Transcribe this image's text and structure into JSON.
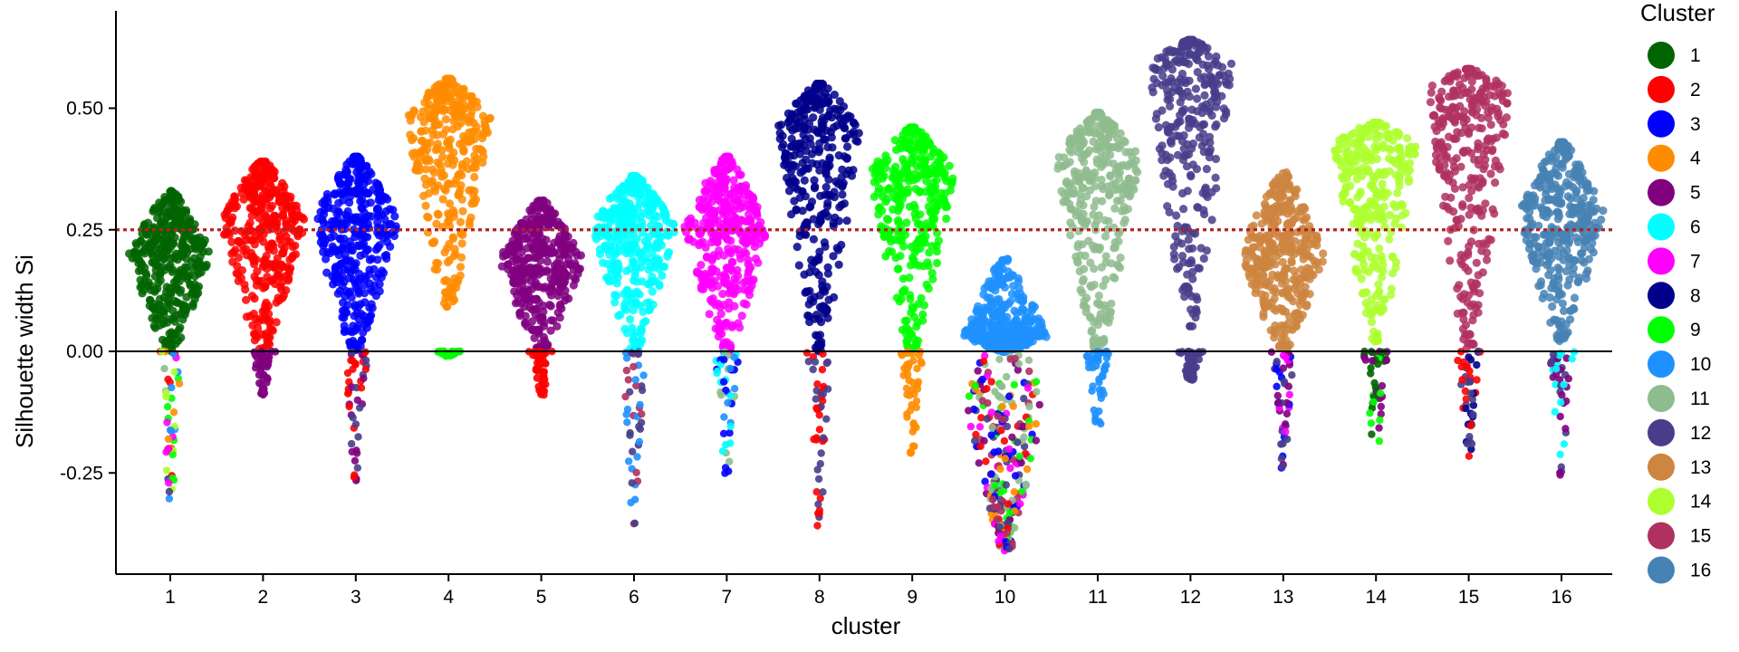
{
  "chart_data": {
    "type": "scatter",
    "subtype": "beeswarm",
    "xlabel": "cluster",
    "ylabel": "Silhouette width Si",
    "ylim": [
      -0.46,
      0.7
    ],
    "yticks": [
      -0.25,
      0.0,
      0.25,
      0.5
    ],
    "ytick_labels": [
      "-0.25",
      "0.00",
      "0.25",
      "0.50"
    ],
    "categories": [
      "1",
      "2",
      "3",
      "4",
      "5",
      "6",
      "7",
      "8",
      "9",
      "10",
      "11",
      "12",
      "13",
      "14",
      "15",
      "16"
    ],
    "reference_lines": [
      {
        "y": 0.0,
        "style": "solid",
        "color": "#000000"
      },
      {
        "y": 0.25,
        "style": "dotted",
        "color": "#b22222"
      }
    ],
    "legend": {
      "title": "Cluster",
      "position": "right"
    },
    "grid": false,
    "series": [
      {
        "name": "1",
        "color": "#006400",
        "min": 0.0,
        "max": 0.33,
        "peak": 0.2,
        "neg_min": -0.31,
        "neg_colors": [
          "#ff8c00",
          "#8fbc8f",
          "#adff2f",
          "#1e90ff",
          "#ff00ff",
          "#ff0000",
          "#00ff00",
          "#483d8b"
        ]
      },
      {
        "name": "2",
        "color": "#ff0000",
        "min": 0.0,
        "max": 0.39,
        "peak": 0.27,
        "neg_min": -0.09,
        "neg_colors": [
          "#800080"
        ]
      },
      {
        "name": "3",
        "color": "#0000ff",
        "min": 0.0,
        "max": 0.4,
        "peak": 0.27,
        "neg_min": -0.28,
        "neg_colors": [
          "#800080",
          "#ff0000",
          "#483d8b"
        ]
      },
      {
        "name": "4",
        "color": "#ff8c00",
        "min": 0.09,
        "max": 0.56,
        "peak": 0.48,
        "neg_min": -0.01,
        "neg_colors": [
          "#00ff00"
        ]
      },
      {
        "name": "5",
        "color": "#800080",
        "min": 0.0,
        "max": 0.31,
        "peak": 0.19,
        "neg_min": -0.09,
        "neg_colors": [
          "#ff0000"
        ]
      },
      {
        "name": "6",
        "color": "#00ffff",
        "min": 0.0,
        "max": 0.36,
        "peak": 0.26,
        "neg_min": -0.36,
        "neg_colors": [
          "#483d8b",
          "#b03060",
          "#1e90ff"
        ]
      },
      {
        "name": "7",
        "color": "#ff00ff",
        "min": 0.0,
        "max": 0.4,
        "peak": 0.26,
        "neg_min": -0.26,
        "neg_colors": [
          "#1e90ff",
          "#8fbc8f",
          "#0000ff",
          "#00ffff"
        ]
      },
      {
        "name": "8",
        "color": "#00008b",
        "min": 0.0,
        "max": 0.55,
        "peak": 0.46,
        "neg_min": -0.36,
        "neg_colors": [
          "#483d8b",
          "#ff0000"
        ]
      },
      {
        "name": "9",
        "color": "#00ff00",
        "min": 0.0,
        "max": 0.46,
        "peak": 0.37,
        "neg_min": -0.21,
        "neg_colors": [
          "#ff8c00"
        ]
      },
      {
        "name": "10",
        "color": "#1e90ff",
        "min": 0.0,
        "max": 0.19,
        "peak": 0.03,
        "neg_min": -0.41,
        "neg_colors": [
          "#ff0000",
          "#0000ff",
          "#ff00ff",
          "#8fbc8f",
          "#483d8b",
          "#00ff00",
          "#ff8c00",
          "#800080",
          "#b03060"
        ]
      },
      {
        "name": "11",
        "color": "#8fbc8f",
        "min": 0.0,
        "max": 0.49,
        "peak": 0.4,
        "neg_min": -0.16,
        "neg_colors": [
          "#1e90ff"
        ]
      },
      {
        "name": "12",
        "color": "#483d8b",
        "min": 0.05,
        "max": 0.64,
        "peak": 0.59,
        "neg_min": -0.06,
        "neg_colors": [
          "#483d8b"
        ]
      },
      {
        "name": "13",
        "color": "#cd853f",
        "min": 0.0,
        "max": 0.37,
        "peak": 0.2,
        "neg_min": -0.24,
        "neg_colors": [
          "#0000ff",
          "#ff00ff",
          "#483d8b",
          "#800080"
        ]
      },
      {
        "name": "14",
        "color": "#adff2f",
        "min": 0.02,
        "max": 0.47,
        "peak": 0.43,
        "neg_min": -0.24,
        "neg_colors": [
          "#00ff00",
          "#006400",
          "#800080"
        ]
      },
      {
        "name": "15",
        "color": "#b03060",
        "min": 0.0,
        "max": 0.58,
        "peak": 0.54,
        "neg_min": -0.22,
        "neg_colors": [
          "#00008b",
          "#483d8b",
          "#ff0000"
        ]
      },
      {
        "name": "16",
        "color": "#4682b4",
        "min": 0.02,
        "max": 0.43,
        "peak": 0.29,
        "neg_min": -0.26,
        "neg_colors": [
          "#483d8b",
          "#00ffff",
          "#800080"
        ]
      }
    ]
  }
}
